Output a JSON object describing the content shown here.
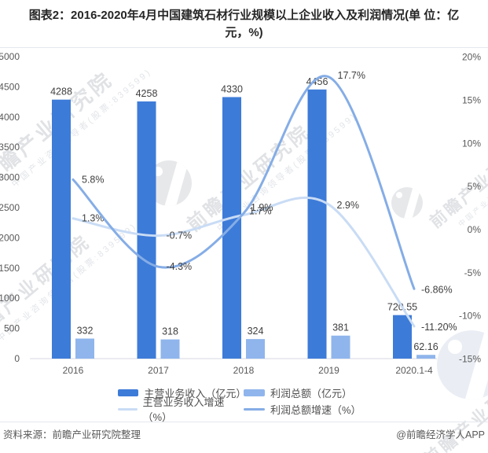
{
  "title": "图表2：2016-2020年4月中国建筑石材行业规模以上企业收入及利润情况(单 位：亿元，%)",
  "watermark": {
    "text": "前瞻产业研究院",
    "subtext": "中国产业咨询领导者(股票:839599)"
  },
  "footer": {
    "source": "资料来源：前瞻产业研究院整理",
    "credit": "@前瞻经济学人APP"
  },
  "colors": {
    "bar_revenue": "#3D7BD8",
    "bar_profit": "#8FB5EC",
    "line_revenue_growth": "#C9DCF5",
    "line_profit_growth": "#85ADE6",
    "axis_text": "#595959",
    "label_text": "#3F3F3F",
    "axis_line": "#D4DAE2"
  },
  "chart_data": {
    "type": "bar+line combo",
    "categories": [
      "2016",
      "2017",
      "2018",
      "2019",
      "2020.1-4"
    ],
    "left_axis": {
      "min": 0,
      "max": 5000,
      "step": 500,
      "ticks": [
        "5000",
        "4500",
        "4000",
        "3500",
        "3000",
        "2500",
        "2000",
        "1500",
        "1000",
        "500",
        "0"
      ]
    },
    "right_axis": {
      "min": -15,
      "max": 20,
      "step": 5,
      "ticks": [
        "20%",
        "15%",
        "10%",
        "5%",
        "0%",
        "-5%",
        "-10%",
        "-15%"
      ]
    },
    "grid": false,
    "legend_position": "bottom",
    "series": [
      {
        "id": "revenue",
        "name": "主营业务收入（亿元）",
        "type": "bar",
        "axis": "left",
        "color": "#3D7BD8",
        "values": [
          4288,
          4258,
          4330,
          4456,
          720.55
        ],
        "labels": [
          "4288",
          "4258",
          "4330",
          "4456",
          "720.55"
        ]
      },
      {
        "id": "profit",
        "name": "利润总额（亿元）",
        "type": "bar",
        "axis": "left",
        "color": "#8FB5EC",
        "values": [
          332,
          318,
          324,
          381,
          62.16
        ],
        "labels": [
          "332",
          "318",
          "324",
          "381",
          "62.16"
        ]
      },
      {
        "id": "revenue-growth",
        "name": "主营业务收入增速（%）",
        "type": "line",
        "axis": "right",
        "color": "#C9DCF5",
        "values": [
          1.3,
          -0.7,
          1.7,
          2.9,
          -11.2
        ],
        "labels": [
          "1.3%",
          "-0.7%",
          "1.7%",
          "2.9%",
          "-11.20%"
        ]
      },
      {
        "id": "profit-growth",
        "name": "利润总额增速（%）",
        "type": "line",
        "axis": "right",
        "color": "#85ADE6",
        "values": [
          5.8,
          -4.3,
          1.9,
          17.7,
          -6.86
        ],
        "labels": [
          "5.8%",
          "-4.3%",
          "1.9%",
          "17.7%",
          "-6.86%"
        ]
      }
    ]
  }
}
